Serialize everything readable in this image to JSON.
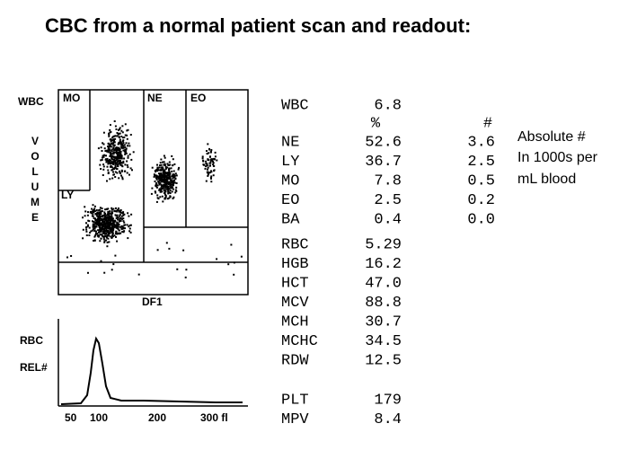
{
  "title": "CBC from a normal patient scan and readout:",
  "scatter": {
    "y_label": "WBC",
    "axis_label": "VOLUME",
    "regions": [
      "MO",
      "NE",
      "EO",
      "LY"
    ],
    "x_label": "DF1"
  },
  "histogram": {
    "labels": [
      "RBC",
      "REL#"
    ],
    "x_ticks": [
      "50",
      "100",
      "200",
      "300 fl"
    ]
  },
  "readout": {
    "wbc": {
      "label": "WBC",
      "value": "6.8"
    },
    "headers": [
      "%",
      "#"
    ],
    "differential": [
      {
        "label": "NE",
        "percent": "52.6",
        "absolute": "3.6"
      },
      {
        "label": "LY",
        "percent": "36.7",
        "absolute": "2.5"
      },
      {
        "label": "MO",
        "percent": "7.8",
        "absolute": "0.5"
      },
      {
        "label": "EO",
        "percent": "2.5",
        "absolute": "0.2"
      },
      {
        "label": "BA",
        "percent": "0.4",
        "absolute": "0.0"
      }
    ],
    "indices": [
      {
        "label": "RBC",
        "value": "5.29"
      },
      {
        "label": "HGB",
        "value": "16.2"
      },
      {
        "label": "HCT",
        "value": "47.0"
      },
      {
        "label": "MCV",
        "value": "88.8"
      },
      {
        "label": "MCH",
        "value": "30.7"
      },
      {
        "label": "MCHC",
        "value": "34.5"
      },
      {
        "label": "RDW",
        "value": "12.5"
      }
    ],
    "platelets": [
      {
        "label": "PLT",
        "value": "179"
      },
      {
        "label": "MPV",
        "value": "8.4"
      }
    ]
  },
  "note": [
    "Absolute #",
    "In 1000s per",
    "mL blood"
  ]
}
